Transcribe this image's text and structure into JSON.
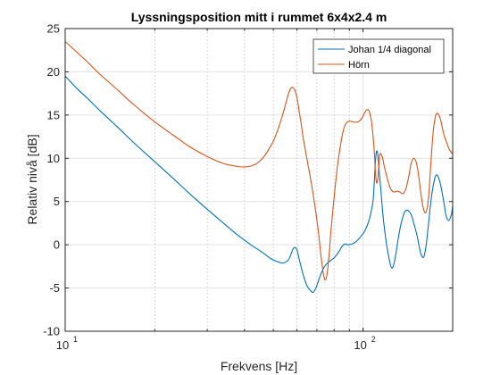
{
  "chart_data": {
    "type": "line",
    "title": "Lyssningsposition mitt i rummet 6x4x2.4 m",
    "xlabel": "Frekvens [Hz]",
    "ylabel": "Relativ nivå [dB]",
    "xscale": "log",
    "xlim": [
      10,
      200
    ],
    "ylim": [
      -10,
      25
    ],
    "yticks": [
      -10,
      -5,
      0,
      5,
      10,
      15,
      20,
      25
    ],
    "xtick_labels": [
      {
        "value": 10,
        "base": "10",
        "exp": "1"
      },
      {
        "value": 100,
        "base": "10",
        "exp": "2"
      }
    ],
    "grid": true,
    "legend_position": "top-right",
    "series": [
      {
        "name": "Johan 1/4 diagonal",
        "color": "#0072BD",
        "x": [
          10,
          11,
          12,
          13,
          15,
          17,
          20,
          23,
          26,
          30,
          34,
          38,
          42,
          46,
          49,
          52,
          54,
          56,
          57,
          58,
          59,
          60,
          61,
          63,
          65,
          67,
          68,
          69,
          70,
          72,
          74,
          76,
          78,
          80,
          83,
          85,
          87,
          89,
          92,
          95,
          98,
          101,
          104,
          106,
          108,
          109,
          110,
          111,
          112,
          113,
          115,
          117,
          120,
          123,
          125,
          127,
          129,
          131,
          133,
          135,
          138,
          141,
          145,
          148,
          152,
          155,
          157,
          160,
          163,
          166,
          169,
          172,
          175,
          178,
          182,
          186,
          190,
          194,
          198,
          200
        ],
        "y": [
          19.5,
          18,
          16.8,
          15.6,
          13.6,
          11.8,
          9.6,
          7.7,
          6,
          4.1,
          2.5,
          1.1,
          0,
          -0.9,
          -1.6,
          -2,
          -2.1,
          -1.8,
          -1.3,
          -0.6,
          -0.3,
          -0.6,
          -1.6,
          -3.5,
          -4.8,
          -5.4,
          -5.5,
          -5.2,
          -4.7,
          -3.5,
          -2.6,
          -2.1,
          -1.8,
          -1.5,
          -0.8,
          -0.2,
          0.1,
          0,
          0.1,
          0.4,
          0.9,
          1.5,
          2.5,
          3.5,
          5,
          7,
          9.5,
          10.8,
          10.5,
          9,
          6,
          3,
          0,
          -2,
          -2.7,
          -2.2,
          -1,
          0.5,
          1.8,
          2.8,
          3.8,
          4,
          3.5,
          2.5,
          1,
          -0.5,
          -1.2,
          -1.4,
          0,
          2.5,
          5,
          6.8,
          7.9,
          8,
          7,
          5.3,
          3.4,
          2.8,
          3.5,
          4.5
        ]
      },
      {
        "name": "Hörn",
        "color": "#D95319",
        "x": [
          10,
          11,
          12,
          13,
          15,
          17,
          20,
          23,
          26,
          30,
          34,
          38,
          40,
          42,
          44,
          46,
          48,
          50,
          52,
          54,
          55,
          56,
          57,
          58,
          59,
          60,
          61,
          62,
          63,
          65,
          67,
          69,
          71,
          72,
          73,
          74,
          75,
          76,
          77,
          78,
          80,
          82,
          84,
          86,
          88,
          90,
          93,
          96,
          99,
          101,
          103,
          105,
          107,
          109,
          110,
          111,
          112,
          113,
          114,
          116,
          118,
          121,
          124,
          127,
          130,
          133,
          136,
          139,
          141,
          143,
          145,
          148,
          151,
          154,
          157,
          160,
          163,
          166,
          169,
          172,
          175,
          178,
          182,
          186,
          190,
          195,
          200
        ],
        "y": [
          23.5,
          22.2,
          21,
          19.8,
          17.9,
          16.2,
          14.2,
          12.7,
          11.4,
          10.2,
          9.4,
          9.05,
          9,
          9.1,
          9.4,
          10,
          10.9,
          12,
          13.5,
          15.3,
          16.3,
          17.3,
          18,
          18.2,
          17.9,
          17,
          15.5,
          14,
          12.3,
          9.7,
          7.2,
          4.4,
          1.2,
          -0.8,
          -2.5,
          -3.8,
          -4,
          -3,
          -1,
          1.5,
          5.5,
          9,
          11.5,
          13.3,
          14.1,
          14.3,
          14.2,
          14.2,
          14.6,
          15.2,
          15.6,
          15.4,
          14,
          11,
          8.5,
          7.2,
          7.5,
          9,
          10.5,
          10.2,
          9,
          7.5,
          6.4,
          6.1,
          6.2,
          6.1,
          5.9,
          6.4,
          7.2,
          8.2,
          9.4,
          10,
          9.5,
          7.8,
          5.5,
          4,
          3.8,
          5.5,
          9.5,
          13,
          14.8,
          15.2,
          14.5,
          13,
          12,
          11,
          10.5
        ]
      }
    ]
  }
}
